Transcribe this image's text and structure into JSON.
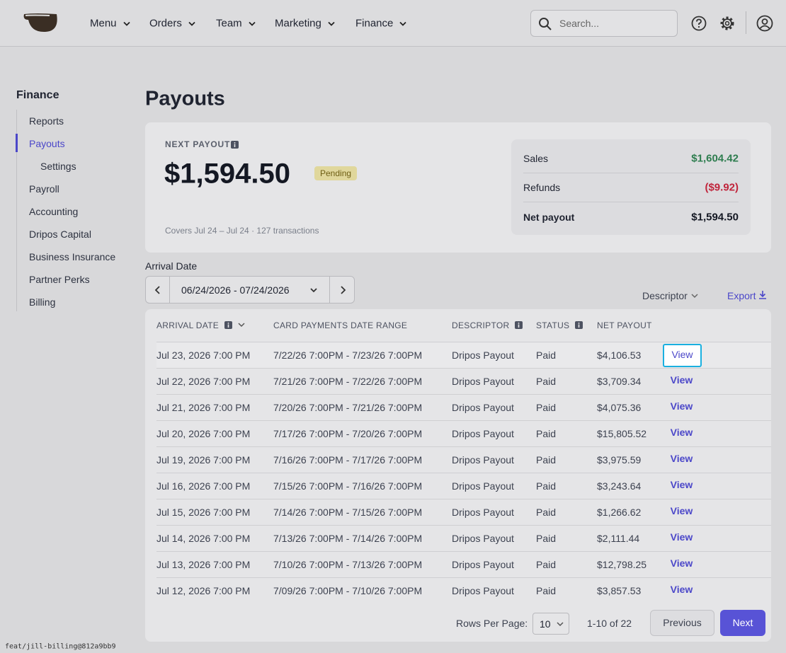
{
  "nav": {
    "items": [
      "Menu",
      "Orders",
      "Team",
      "Marketing",
      "Finance"
    ],
    "search_placeholder": "Search..."
  },
  "sidebar": {
    "title": "Finance",
    "items": [
      "Reports",
      "Payouts",
      "Settings",
      "Payroll",
      "Accounting",
      "Dripos Capital",
      "Business Insurance",
      "Partner Perks",
      "Billing"
    ]
  },
  "page": {
    "title": "Payouts"
  },
  "summary": {
    "label": "NEXT PAYOUT",
    "amount": "$1,594.50",
    "status": "Pending",
    "note": "Covers Jul 24 – Jul 24 · 127 transactions",
    "breakdown": [
      {
        "label": "Sales",
        "value": "$1,604.42"
      },
      {
        "label": "Refunds",
        "value": "($9.92)"
      },
      {
        "label": "Net payout",
        "value": "$1,594.50"
      }
    ]
  },
  "filters": {
    "arrival_label": "Arrival Date",
    "date_range": "06/24/2026 - 07/24/2026",
    "descriptor": "Descriptor",
    "export": "Export"
  },
  "table": {
    "headers": [
      "ARRIVAL DATE",
      "CARD PAYMENTS DATE RANGE",
      "DESCRIPTOR",
      "STATUS",
      "NET PAYOUT"
    ],
    "rows": [
      [
        "Jul 23, 2026 7:00 PM",
        "7/22/26 7:00PM - 7/23/26 7:00PM",
        "Dripos Payout",
        "Paid",
        "$4,106.53",
        "View"
      ],
      [
        "Jul 22, 2026 7:00 PM",
        "7/21/26 7:00PM - 7/22/26 7:00PM",
        "Dripos Payout",
        "Paid",
        "$3,709.34",
        "View"
      ],
      [
        "Jul 21, 2026 7:00 PM",
        "7/20/26 7:00PM - 7/21/26 7:00PM",
        "Dripos Payout",
        "Paid",
        "$4,075.36",
        "View"
      ],
      [
        "Jul 20, 2026 7:00 PM",
        "7/17/26 7:00PM - 7/20/26 7:00PM",
        "Dripos Payout",
        "Paid",
        "$15,805.52",
        "View"
      ],
      [
        "Jul 19, 2026 7:00 PM",
        "7/16/26 7:00PM - 7/17/26 7:00PM",
        "Dripos Payout",
        "Paid",
        "$3,975.59",
        "View"
      ],
      [
        "Jul 16, 2026 7:00 PM",
        "7/15/26 7:00PM - 7/16/26 7:00PM",
        "Dripos Payout",
        "Paid",
        "$3,243.64",
        "View"
      ],
      [
        "Jul 15, 2026 7:00 PM",
        "7/14/26 7:00PM - 7/15/26 7:00PM",
        "Dripos Payout",
        "Paid",
        "$1,266.62",
        "View"
      ],
      [
        "Jul 14, 2026 7:00 PM",
        "7/13/26 7:00PM - 7/14/26 7:00PM",
        "Dripos Payout",
        "Paid",
        "$2,111.44",
        "View"
      ],
      [
        "Jul 13, 2026 7:00 PM",
        "7/10/26 7:00PM - 7/13/26 7:00PM",
        "Dripos Payout",
        "Paid",
        "$12,798.25",
        "View"
      ],
      [
        "Jul 12, 2026 7:00 PM",
        "7/09/26 7:00PM - 7/10/26 7:00PM",
        "Dripos Payout",
        "Paid",
        "$3,857.53",
        "View"
      ]
    ]
  },
  "pagination": {
    "rows_per_page_label": "Rows Per Page:",
    "rows_per_page": "10",
    "range": "1-10 of 22",
    "previous": "Previous",
    "next": "Next"
  },
  "footer": "feat/jill-billing@812a9bb9"
}
